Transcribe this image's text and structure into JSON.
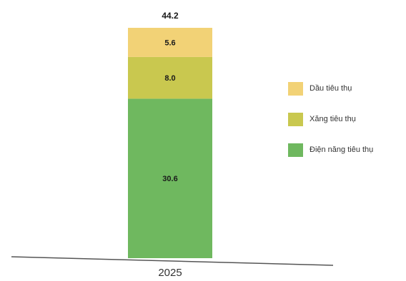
{
  "chart_data": {
    "type": "bar",
    "stacked": true,
    "categories": [
      "2025"
    ],
    "series": [
      {
        "name": "Điện năng tiêu thụ",
        "values": [
          30.6
        ],
        "color": "#6fb85f"
      },
      {
        "name": "Xăng tiêu thụ",
        "values": [
          8.0
        ],
        "color": "#c9c84f"
      },
      {
        "name": "Dầu tiêu thụ",
        "values": [
          5.6
        ],
        "color": "#f2d276"
      }
    ],
    "totals": [
      44.2
    ],
    "total_labels": [
      "44.2"
    ],
    "segment_labels": [
      "30.6",
      "8.0",
      "5.6"
    ],
    "ylim": [
      0,
      44.2
    ],
    "grid": false,
    "legend_position": "right",
    "title": "",
    "xlabel": "",
    "ylabel": ""
  }
}
